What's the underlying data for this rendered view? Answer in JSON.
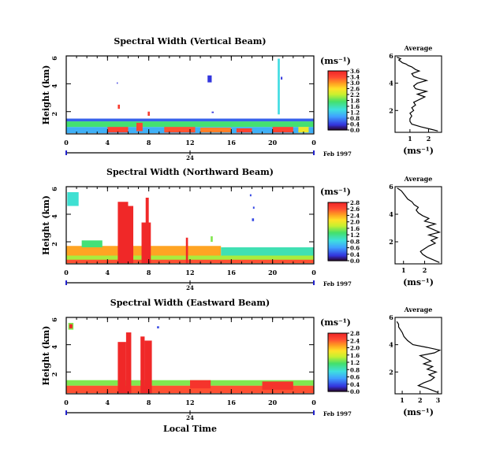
{
  "chart_data": [
    {
      "type": "heatmap",
      "title": "Spectral Width (Vertical Beam)",
      "ylabel": "Height (km)",
      "y_ticks": [
        "2",
        "4",
        "6"
      ],
      "ylim": [
        0.4,
        6
      ],
      "x_ticks": [
        "0",
        "4",
        "8",
        "12",
        "16",
        "20",
        "0"
      ],
      "xlim": [
        0,
        24
      ],
      "date_tick": "24",
      "date_label": "Feb 1997",
      "colorbar": {
        "unit": "(ms⁻¹)",
        "tick_labels": [
          "3.6",
          "3.4",
          "3.0",
          "2.6",
          "2.2",
          "1.8",
          "1.6",
          "1.2",
          "0.8",
          "0.4",
          "0.0"
        ]
      },
      "cells": [
        {
          "t0": 0.0,
          "t1": 24.0,
          "h0": 0.45,
          "h1": 0.9,
          "v": 0.9
        },
        {
          "t0": 0.0,
          "t1": 24.0,
          "h0": 0.9,
          "h1": 1.3,
          "v": 1.7
        },
        {
          "t0": 0.0,
          "t1": 24.0,
          "h0": 1.3,
          "h1": 1.5,
          "v": 0.5
        },
        {
          "t0": 4.0,
          "t1": 6.0,
          "h0": 0.5,
          "h1": 0.9,
          "v": 3.3
        },
        {
          "t0": 6.8,
          "t1": 7.4,
          "h0": 0.6,
          "h1": 1.2,
          "v": 3.3
        },
        {
          "t0": 9.5,
          "t1": 12.5,
          "h0": 0.5,
          "h1": 0.9,
          "v": 3.2
        },
        {
          "t0": 13.0,
          "t1": 16.0,
          "h0": 0.5,
          "h1": 0.85,
          "v": 3.0
        },
        {
          "t0": 16.5,
          "t1": 18.0,
          "h0": 0.5,
          "h1": 0.8,
          "v": 3.3
        },
        {
          "t0": 20.0,
          "t1": 22.0,
          "h0": 0.5,
          "h1": 0.9,
          "v": 3.3
        },
        {
          "t0": 22.5,
          "t1": 23.5,
          "h0": 0.5,
          "h1": 0.9,
          "v": 2.4
        },
        {
          "t0": 5.0,
          "t1": 5.2,
          "h0": 2.2,
          "h1": 2.5,
          "v": 3.4
        },
        {
          "t0": 7.9,
          "t1": 8.1,
          "h0": 1.7,
          "h1": 2.0,
          "v": 3.4
        },
        {
          "t0": 13.7,
          "t1": 14.1,
          "h0": 4.1,
          "h1": 4.6,
          "v": 0.3
        },
        {
          "t0": 20.5,
          "t1": 20.7,
          "h0": 1.8,
          "h1": 5.8,
          "v": 1.2
        },
        {
          "t0": 4.9,
          "t1": 5.0,
          "h0": 4.0,
          "h1": 4.1,
          "v": 0.3
        },
        {
          "t0": 14.1,
          "t1": 14.3,
          "h0": 1.9,
          "h1": 2.0,
          "v": 0.3
        },
        {
          "t0": 20.8,
          "t1": 20.95,
          "h0": 4.3,
          "h1": 4.5,
          "v": 0.3
        }
      ]
    },
    {
      "type": "heatmap",
      "title": "Spectral Width (Northward Beam)",
      "ylabel": "Height (km)",
      "y_ticks": [
        "2",
        "4",
        "6"
      ],
      "ylim": [
        0.4,
        6
      ],
      "x_ticks": [
        "0",
        "4",
        "8",
        "12",
        "16",
        "20",
        "0"
      ],
      "xlim": [
        0,
        24
      ],
      "date_tick": "24",
      "date_label": "Feb 1997",
      "colorbar": {
        "unit": "(ms⁻¹)",
        "tick_labels": [
          "2.8",
          "2.6",
          "2.4",
          "2.0",
          "1.6",
          "1.2",
          "0.8",
          "0.6",
          "0.4",
          "0.0"
        ]
      },
      "cells": [
        {
          "t0": 0.0,
          "t1": 24.0,
          "h0": 0.45,
          "h1": 1.0,
          "v": 1.6
        },
        {
          "t0": 0.0,
          "t1": 15.0,
          "h0": 1.0,
          "h1": 1.7,
          "v": 2.2
        },
        {
          "t0": 15.0,
          "t1": 24.0,
          "h0": 1.0,
          "h1": 1.6,
          "v": 1.1
        },
        {
          "t0": 0.0,
          "t1": 24.0,
          "h0": 0.45,
          "h1": 0.7,
          "v": 2.5
        },
        {
          "t0": 5.0,
          "t1": 6.0,
          "h0": 0.45,
          "h1": 4.9,
          "v": 2.8
        },
        {
          "t0": 6.0,
          "t1": 6.5,
          "h0": 0.45,
          "h1": 4.6,
          "v": 2.8
        },
        {
          "t0": 7.3,
          "t1": 8.2,
          "h0": 0.45,
          "h1": 3.4,
          "v": 2.8
        },
        {
          "t0": 7.7,
          "t1": 8.0,
          "h0": 3.4,
          "h1": 5.2,
          "v": 2.8
        },
        {
          "t0": 11.6,
          "t1": 11.8,
          "h0": 0.45,
          "h1": 2.3,
          "v": 2.8
        },
        {
          "t0": 0.1,
          "t1": 1.2,
          "h0": 4.6,
          "h1": 5.6,
          "v": 1.0
        },
        {
          "t0": 1.5,
          "t1": 3.5,
          "h0": 1.6,
          "h1": 2.1,
          "v": 1.3
        },
        {
          "t0": 18.0,
          "t1": 18.2,
          "h0": 3.5,
          "h1": 3.7,
          "v": 0.3
        },
        {
          "t0": 17.8,
          "t1": 17.95,
          "h0": 5.3,
          "h1": 5.45,
          "v": 0.3
        },
        {
          "t0": 18.1,
          "t1": 18.25,
          "h0": 4.4,
          "h1": 4.55,
          "v": 0.3
        },
        {
          "t0": 14.0,
          "t1": 14.2,
          "h0": 2.0,
          "h1": 2.4,
          "v": 1.5
        }
      ]
    },
    {
      "type": "heatmap",
      "title": "Spectral Width (Eastward Beam)",
      "ylabel": "Height (km)",
      "y_ticks": [
        "2",
        "4",
        "6"
      ],
      "ylim": [
        0.4,
        6
      ],
      "x_ticks": [
        "0",
        "4",
        "8",
        "12",
        "16",
        "20",
        "0"
      ],
      "xlim": [
        0,
        24
      ],
      "date_tick": "24",
      "date_label": "Feb 1997",
      "xlabel": "Local Time",
      "colorbar": {
        "unit": "(ms⁻¹)",
        "tick_labels": [
          "2.8",
          "2.4",
          "2.0",
          "1.6",
          "1.2",
          "0.8",
          "0.6",
          "0.4",
          "0.0"
        ]
      },
      "cells": [
        {
          "t0": 0.0,
          "t1": 24.0,
          "h0": 0.45,
          "h1": 1.0,
          "v": 2.5
        },
        {
          "t0": 0.0,
          "t1": 24.0,
          "h0": 1.0,
          "h1": 1.4,
          "v": 1.5
        },
        {
          "t0": 5.0,
          "t1": 5.8,
          "h0": 0.45,
          "h1": 4.2,
          "v": 2.8
        },
        {
          "t0": 5.8,
          "t1": 6.3,
          "h0": 0.45,
          "h1": 4.9,
          "v": 2.8
        },
        {
          "t0": 7.2,
          "t1": 7.6,
          "h0": 0.45,
          "h1": 4.6,
          "v": 2.8
        },
        {
          "t0": 7.6,
          "t1": 8.3,
          "h0": 0.45,
          "h1": 4.3,
          "v": 2.8
        },
        {
          "t0": 0.2,
          "t1": 0.7,
          "h0": 5.1,
          "h1": 5.6,
          "v": 1.5
        },
        {
          "t0": 0.3,
          "t1": 0.6,
          "h0": 5.2,
          "h1": 5.5,
          "v": 2.8
        },
        {
          "t0": 12.0,
          "t1": 14.0,
          "h0": 0.8,
          "h1": 1.4,
          "v": 2.7
        },
        {
          "t0": 19.0,
          "t1": 22.0,
          "h0": 0.7,
          "h1": 1.3,
          "v": 2.7
        },
        {
          "t0": 8.8,
          "t1": 9.0,
          "h0": 5.2,
          "h1": 5.35,
          "v": 0.3
        }
      ]
    },
    {
      "type": "line",
      "title": "Average",
      "xlabel": "(ms⁻¹)",
      "x_ticks": [
        "1",
        "2"
      ],
      "xlim": [
        0.2,
        2.7
      ],
      "y_ticks": [
        "2",
        "4",
        "6"
      ],
      "ylim": [
        0.4,
        6
      ],
      "x": [
        2.5,
        2.2,
        1.6,
        1.1,
        1.0,
        1.0,
        1.1,
        1.0,
        1.2,
        1.1,
        1.3,
        1.2,
        1.5,
        1.8,
        1.4,
        1.9,
        1.3,
        1.2,
        1.4,
        1.9,
        1.4,
        1.2,
        1.1,
        1.5,
        1.3,
        1.1,
        0.9,
        0.8,
        0.6,
        0.5,
        0.4,
        0.5,
        0.3
      ],
      "y": [
        0.5,
        0.6,
        0.8,
        1.0,
        1.2,
        1.4,
        1.6,
        1.8,
        2.0,
        2.2,
        2.4,
        2.6,
        2.8,
        3.0,
        3.2,
        3.4,
        3.6,
        3.8,
        4.0,
        4.2,
        4.4,
        4.5,
        4.7,
        4.9,
        5.0,
        5.2,
        5.3,
        5.4,
        5.5,
        5.6,
        5.7,
        5.8,
        5.9
      ]
    },
    {
      "type": "line",
      "title": "Average",
      "xlabel": "(ms⁻¹)",
      "x_ticks": [
        "1",
        "2"
      ],
      "xlim": [
        0.6,
        2.8
      ],
      "y_ticks": [
        "2",
        "4",
        "6"
      ],
      "ylim": [
        0.4,
        6
      ],
      "x": [
        2.7,
        2.4,
        2.1,
        1.9,
        1.8,
        2.0,
        2.2,
        2.5,
        2.3,
        2.6,
        2.2,
        2.7,
        2.4,
        2.1,
        2.5,
        2.0,
        2.2,
        1.9,
        1.7,
        1.6,
        1.7,
        1.5,
        1.4,
        1.2,
        1.1,
        1.0,
        0.9,
        0.8,
        0.7
      ],
      "y": [
        0.5,
        0.7,
        0.9,
        1.1,
        1.3,
        1.5,
        1.7,
        1.9,
        2.1,
        2.3,
        2.5,
        2.7,
        2.9,
        3.1,
        3.3,
        3.5,
        3.7,
        3.9,
        4.1,
        4.3,
        4.5,
        4.7,
        4.9,
        5.1,
        5.3,
        5.5,
        5.7,
        5.8,
        5.9
      ]
    },
    {
      "type": "line",
      "title": "Average",
      "xlabel": "(ms⁻¹)",
      "x_ticks": [
        "1",
        "2",
        "3"
      ],
      "xlim": [
        0.6,
        3.2
      ],
      "y_ticks": [
        "2",
        "4",
        "6"
      ],
      "ylim": [
        0.4,
        6
      ],
      "x": [
        3.0,
        2.4,
        1.9,
        2.2,
        2.6,
        2.8,
        2.5,
        2.9,
        2.4,
        2.7,
        2.2,
        2.6,
        2.3,
        2.0,
        2.8,
        3.1,
        2.4,
        1.6,
        1.3,
        1.1,
        1.0,
        0.9,
        0.8,
        0.8,
        0.7
      ],
      "y": [
        0.5,
        0.8,
        1.0,
        1.2,
        1.4,
        1.6,
        1.8,
        2.0,
        2.2,
        2.4,
        2.6,
        2.8,
        3.0,
        3.2,
        3.4,
        3.6,
        3.8,
        4.0,
        4.3,
        4.6,
        4.9,
        5.1,
        5.3,
        5.5,
        5.7
      ]
    }
  ]
}
